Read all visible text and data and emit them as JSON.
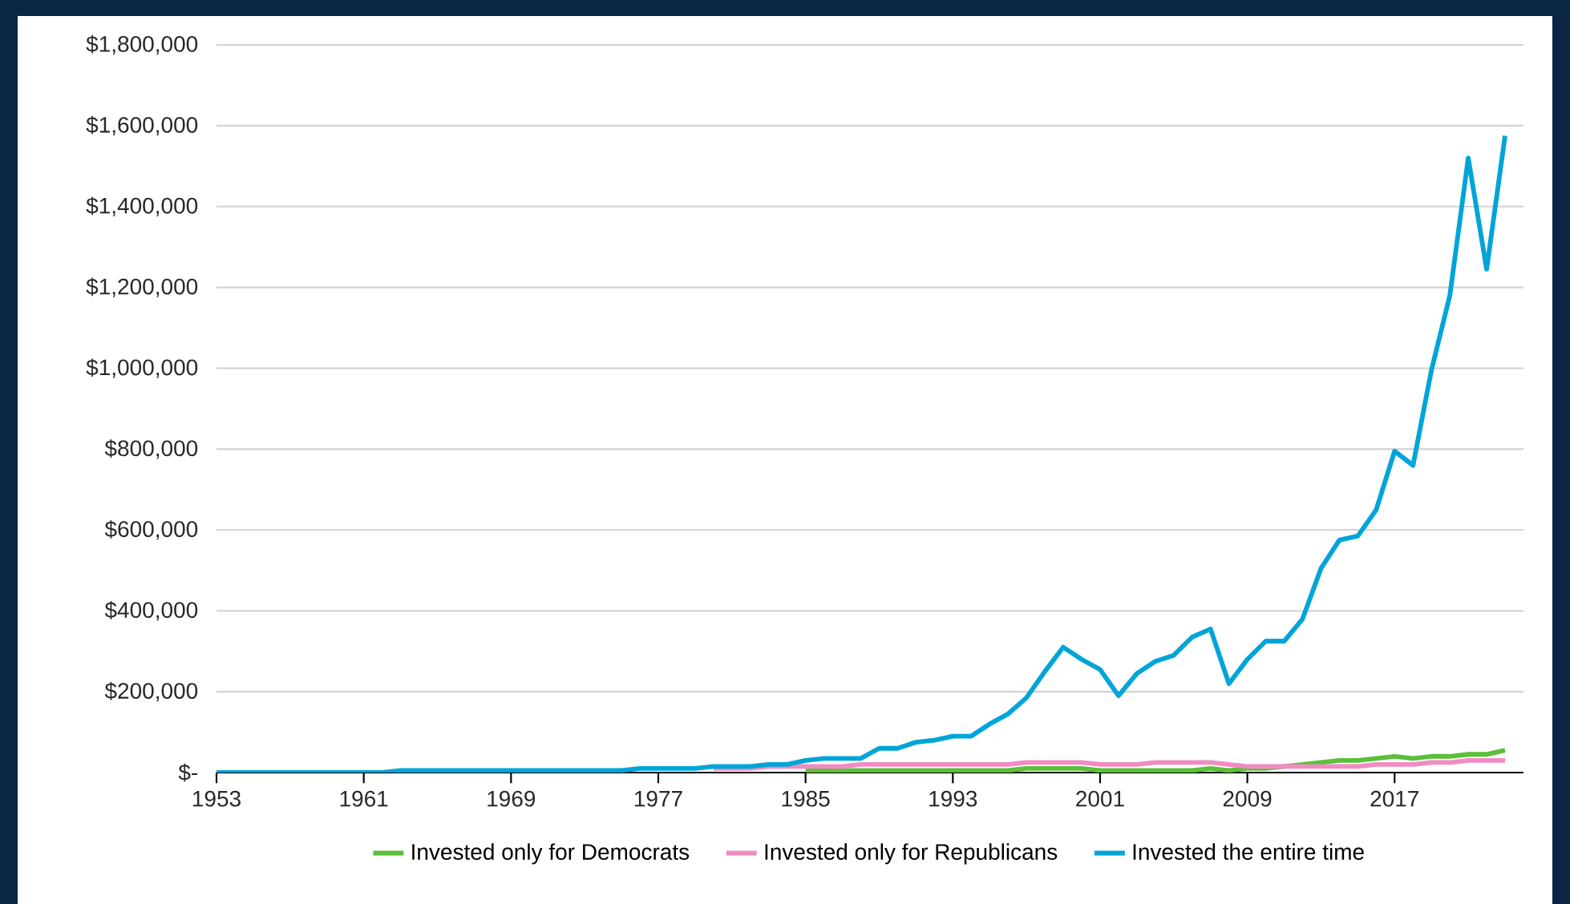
{
  "chart_data": {
    "type": "line",
    "x": [
      1953,
      1954,
      1955,
      1956,
      1957,
      1958,
      1959,
      1960,
      1961,
      1962,
      1963,
      1964,
      1965,
      1966,
      1967,
      1968,
      1969,
      1970,
      1971,
      1972,
      1973,
      1974,
      1975,
      1976,
      1977,
      1978,
      1979,
      1980,
      1981,
      1982,
      1983,
      1984,
      1985,
      1986,
      1987,
      1988,
      1989,
      1990,
      1991,
      1992,
      1993,
      1994,
      1995,
      1996,
      1997,
      1998,
      1999,
      2000,
      2001,
      2002,
      2003,
      2004,
      2005,
      2006,
      2007,
      2008,
      2009,
      2010,
      2011,
      2012,
      2013,
      2014,
      2015,
      2016,
      2017,
      2018,
      2019,
      2020,
      2021,
      2022,
      2023
    ],
    "series": [
      {
        "name": "Invested only for Democrats",
        "color": "#5bbf3a",
        "values": [
          null,
          null,
          null,
          null,
          null,
          null,
          null,
          null,
          null,
          null,
          null,
          null,
          null,
          null,
          null,
          null,
          null,
          null,
          null,
          null,
          null,
          null,
          null,
          null,
          null,
          null,
          null,
          null,
          null,
          null,
          null,
          null,
          5000,
          5000,
          5000,
          5000,
          5000,
          5000,
          5000,
          5000,
          5000,
          5000,
          5000,
          5000,
          10000,
          10000,
          10000,
          10000,
          5000,
          5000,
          5000,
          5000,
          5000,
          5000,
          10000,
          5000,
          10000,
          10000,
          15000,
          20000,
          25000,
          30000,
          30000,
          35000,
          40000,
          35000,
          40000,
          40000,
          45000,
          45000,
          55000
        ]
      },
      {
        "name": "Invested only for Republicans",
        "color": "#f08cc4",
        "values": [
          null,
          null,
          null,
          null,
          null,
          null,
          null,
          null,
          null,
          null,
          null,
          null,
          null,
          null,
          null,
          null,
          null,
          null,
          null,
          null,
          null,
          null,
          null,
          null,
          null,
          null,
          null,
          10000,
          10000,
          10000,
          15000,
          15000,
          15000,
          15000,
          15000,
          20000,
          20000,
          20000,
          20000,
          20000,
          20000,
          20000,
          20000,
          20000,
          25000,
          25000,
          25000,
          25000,
          20000,
          20000,
          20000,
          25000,
          25000,
          25000,
          25000,
          20000,
          15000,
          15000,
          15000,
          15000,
          15000,
          15000,
          15000,
          20000,
          20000,
          20000,
          25000,
          25000,
          30000,
          30000,
          30000
        ]
      },
      {
        "name": "Invested the entire time",
        "color": "#00a5d8",
        "values": [
          0,
          0,
          0,
          0,
          0,
          0,
          0,
          0,
          0,
          0,
          5000,
          5000,
          5000,
          5000,
          5000,
          5000,
          5000,
          5000,
          5000,
          5000,
          5000,
          5000,
          5000,
          10000,
          10000,
          10000,
          10000,
          15000,
          15000,
          15000,
          20000,
          20000,
          30000,
          35000,
          35000,
          35000,
          60000,
          60000,
          75000,
          80000,
          90000,
          90000,
          120000,
          145000,
          185000,
          250000,
          310000,
          280000,
          255000,
          190000,
          245000,
          275000,
          290000,
          335000,
          355000,
          220000,
          280000,
          325000,
          325000,
          380000,
          505000,
          575000,
          585000,
          650000,
          795000,
          760000,
          995000,
          1180000,
          1520000,
          1245000,
          1575000
        ]
      }
    ],
    "xlim": [
      1953,
      2024
    ],
    "xticks": [
      1953,
      1961,
      1969,
      1977,
      1985,
      1993,
      2001,
      2009,
      2017
    ],
    "ylim": [
      0,
      1800000
    ],
    "yticks": [
      {
        "value": 0,
        "label": "$-"
      },
      {
        "value": 200000,
        "label": "$200,000"
      },
      {
        "value": 400000,
        "label": "$400,000"
      },
      {
        "value": 600000,
        "label": "$600,000"
      },
      {
        "value": 800000,
        "label": "$800,000"
      },
      {
        "value": 1000000,
        "label": "$1,000,000"
      },
      {
        "value": 1200000,
        "label": "$1,200,000"
      },
      {
        "value": 1400000,
        "label": "$1,400,000"
      },
      {
        "value": 1600000,
        "label": "$1,600,000"
      },
      {
        "value": 1800000,
        "label": "$1,800,000"
      }
    ],
    "grid": "y",
    "legend": "bottom",
    "marker": "none",
    "line_style": "solid"
  }
}
